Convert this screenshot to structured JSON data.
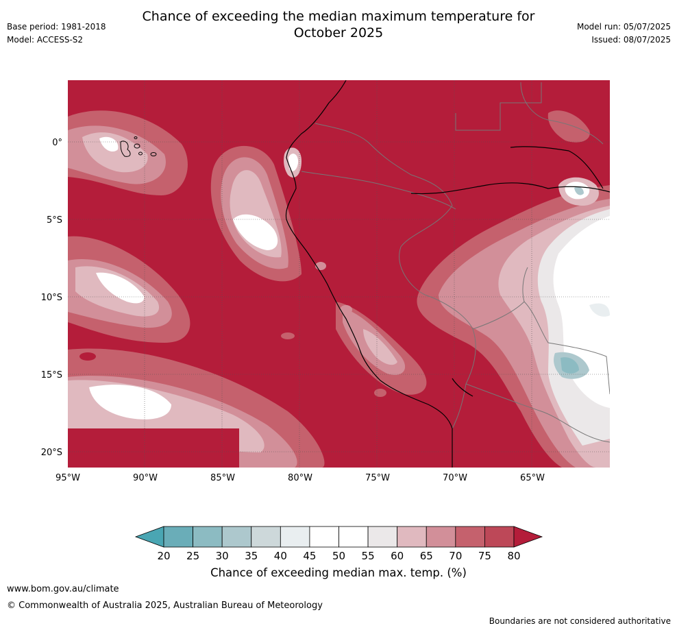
{
  "title_line1": "Chance of exceeding the median maximum temperature for",
  "title_line2": "October 2025",
  "meta_left": [
    "Base period: 1981-2018",
    "Model: ACCESS-S2"
  ],
  "meta_right": [
    "Model run: 05/07/2025",
    "Issued: 08/07/2025"
  ],
  "map": {
    "lon_ticks": [
      "95°W",
      "90°W",
      "85°W",
      "80°W",
      "75°W",
      "70°W",
      "65°W"
    ],
    "lat_ticks": [
      "0°",
      "5°S",
      "10°S",
      "15°S",
      "20°S"
    ]
  },
  "colorbar": {
    "label": "Chance of exceeding median max. temp. (%)",
    "ticks": [
      "20",
      "25",
      "30",
      "35",
      "40",
      "45",
      "50",
      "55",
      "60",
      "65",
      "70",
      "75",
      "80"
    ],
    "colors": [
      "#6aadb8",
      "#8cbbc2",
      "#adc8cd",
      "#cdd8da",
      "#e9eef0",
      "#ffffff",
      "#ffffff",
      "#ebe8e9",
      "#e0b9bf",
      "#d28f99",
      "#c5616d",
      "#bd4858"
    ],
    "under_color": "#4aa6b3",
    "over_color": "#b41d3a"
  },
  "footer": {
    "url": "www.bom.gov.au/climate",
    "copyright": "© Commonwealth of Australia 2025, Australian Bureau of Meteorology",
    "disclaimer": "Boundaries are not considered authoritative"
  }
}
